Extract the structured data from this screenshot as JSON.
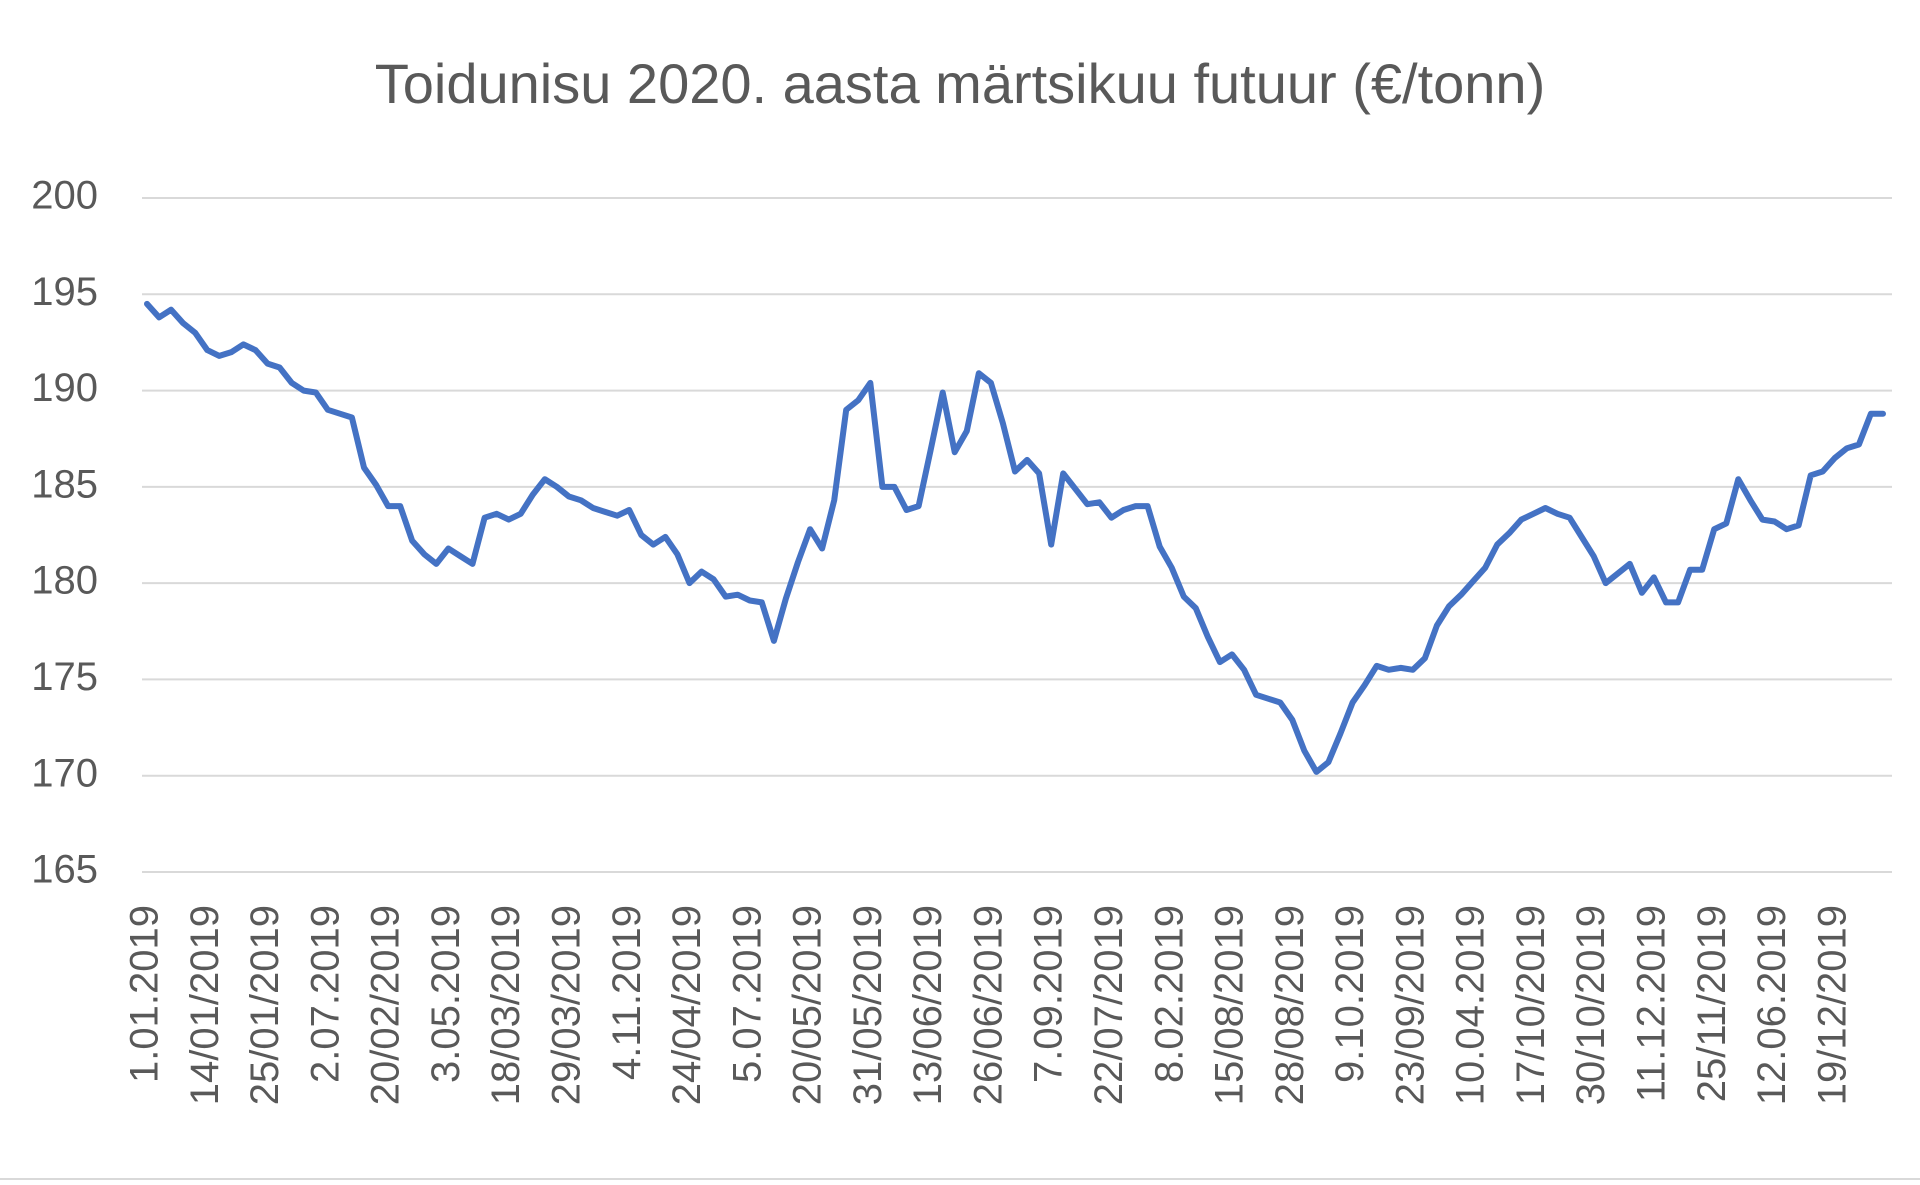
{
  "chart_data": {
    "type": "line",
    "title": "Toidunisu 2020. aasta märtsikuu futuur (€/tonn)",
    "categories": [
      "1.01.2019",
      null,
      null,
      null,
      null,
      "14/01/2019",
      null,
      null,
      null,
      null,
      "25/01/2019",
      null,
      null,
      null,
      null,
      "2.07.2019",
      null,
      null,
      null,
      null,
      "20/02/2019",
      null,
      null,
      null,
      null,
      "3.05.2019",
      null,
      null,
      null,
      null,
      "18/03/2019",
      null,
      null,
      null,
      null,
      "29/03/2019",
      null,
      null,
      null,
      null,
      "4.11.2019",
      null,
      null,
      null,
      null,
      "24/04/2019",
      null,
      null,
      null,
      null,
      "5.07.2019",
      null,
      null,
      null,
      null,
      "20/05/2019",
      null,
      null,
      null,
      null,
      "31/05/2019",
      null,
      null,
      null,
      null,
      "13/06/2019",
      null,
      null,
      null,
      null,
      "26/06/2019",
      null,
      null,
      null,
      null,
      "7.09.2019",
      null,
      null,
      null,
      null,
      "22/07/2019",
      null,
      null,
      null,
      null,
      "8.02.2019",
      null,
      null,
      null,
      null,
      "15/08/2019",
      null,
      null,
      null,
      null,
      "28/08/2019",
      null,
      null,
      null,
      null,
      "9.10.2019",
      null,
      null,
      null,
      null,
      "23/09/2019",
      null,
      null,
      null,
      null,
      "10.04.2019",
      null,
      null,
      null,
      null,
      "17/10/2019",
      null,
      null,
      null,
      null,
      "30/10/2019",
      null,
      null,
      null,
      null,
      "11.12.2019",
      null,
      null,
      null,
      null,
      "25/11/2019",
      null,
      null,
      null,
      null,
      "12.06.2019",
      null,
      null,
      null,
      null,
      "19/12/2019",
      null,
      null,
      null,
      null
    ],
    "values": [
      194.5,
      193.8,
      194.2,
      193.5,
      193,
      192.1,
      191.8,
      192,
      192.4,
      192.1,
      191.4,
      191.2,
      190.4,
      190,
      189.9,
      189,
      188.8,
      188.6,
      186,
      185.1,
      184,
      184,
      182.2,
      181.5,
      181,
      181.8,
      181.4,
      181,
      183.4,
      183.6,
      183.3,
      183.6,
      184.6,
      185.4,
      185,
      184.5,
      184.3,
      183.9,
      183.7,
      183.5,
      183.8,
      182.5,
      182,
      182.4,
      181.5,
      180,
      180.6,
      180.2,
      179.3,
      179.4,
      179.1,
      179,
      177,
      179.2,
      181.1,
      182.8,
      181.8,
      184.3,
      189,
      189.5,
      190.4,
      185,
      185,
      183.8,
      184,
      186.9,
      189.9,
      186.8,
      187.9,
      190.9,
      190.4,
      188.3,
      185.8,
      186.4,
      185.7,
      182,
      185.7,
      184.9,
      184.1,
      184.2,
      183.4,
      183.8,
      184,
      184,
      181.9,
      180.8,
      179.3,
      178.7,
      177.2,
      175.9,
      176.3,
      175.5,
      174.2,
      174,
      173.8,
      172.9,
      171.3,
      170.2,
      170.7,
      172.2,
      173.8,
      174.7,
      175.7,
      175.5,
      175.6,
      175.5,
      176.1,
      177.8,
      178.8,
      179.4,
      180.1,
      180.8,
      182,
      182.6,
      183.3,
      183.6,
      183.9,
      183.6,
      183.4,
      182.4,
      181.4,
      180,
      180.5,
      181,
      179.5,
      180.3,
      179,
      179,
      180.7,
      180.7,
      182.8,
      183.1,
      185.4,
      184.3,
      183.3,
      183.2,
      182.8,
      183,
      185.6,
      185.8,
      186.5,
      187,
      187.2,
      188.8,
      188.8
    ],
    "color": "#4472c4",
    "ylim": [
      165,
      200
    ],
    "yticks": [
      165,
      170,
      175,
      180,
      185,
      190,
      195,
      200
    ],
    "grid": true
  }
}
